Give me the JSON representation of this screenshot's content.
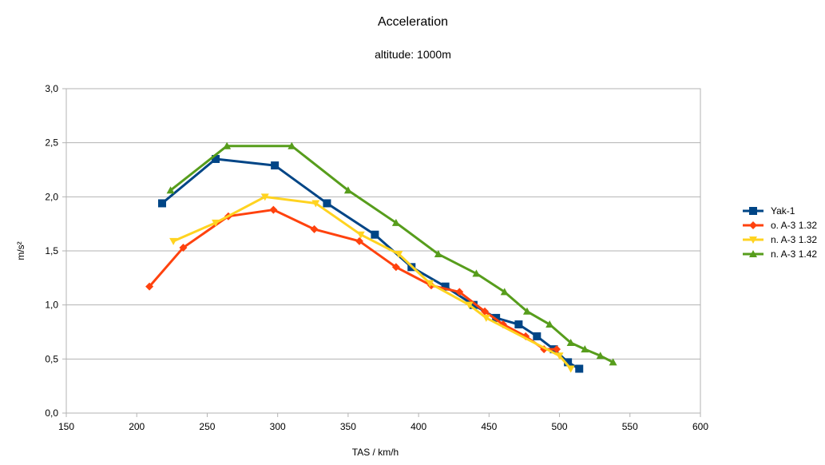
{
  "chart_data": {
    "type": "line",
    "title": "Acceleration",
    "subtitle": "altitude: 1000m",
    "xlabel": "TAS / km/h",
    "ylabel": "m/s²",
    "xlim": [
      150,
      600
    ],
    "ylim": [
      0,
      3
    ],
    "xticks": [
      150,
      200,
      250,
      300,
      350,
      400,
      450,
      500,
      550,
      600
    ],
    "yticks": [
      0,
      0.5,
      1,
      1.5,
      2,
      2.5,
      3
    ],
    "xtick_labels": [
      "150",
      "200",
      "250",
      "300",
      "350",
      "400",
      "450",
      "500",
      "550",
      "600"
    ],
    "ytick_labels": [
      "0,0",
      "0,5",
      "1,0",
      "1,5",
      "2,0",
      "2,5",
      "3,0"
    ],
    "grid": "horizontal",
    "legend_position": "right",
    "series": [
      {
        "name": "Yak-1",
        "color": "#004586",
        "marker": "square",
        "x": [
          218,
          256,
          298,
          335,
          369,
          395,
          419,
          439,
          455,
          471,
          484,
          496,
          506,
          514
        ],
        "y": [
          1.94,
          2.35,
          2.29,
          1.94,
          1.65,
          1.35,
          1.17,
          1.0,
          0.88,
          0.82,
          0.71,
          0.59,
          0.47,
          0.41
        ]
      },
      {
        "name": "o. A-3 1.32",
        "color": "#ff420e",
        "marker": "diamond",
        "x": [
          209,
          233,
          265,
          297,
          326,
          358,
          384,
          409,
          429,
          447,
          460,
          476,
          489,
          498
        ],
        "y": [
          1.17,
          1.53,
          1.82,
          1.88,
          1.7,
          1.59,
          1.35,
          1.18,
          1.12,
          0.94,
          0.82,
          0.71,
          0.59,
          0.59
        ]
      },
      {
        "name": "n. A-3 1.32",
        "color": "#ffd320",
        "marker": "triangle-down",
        "x": [
          226,
          256,
          291,
          327,
          359,
          386,
          408,
          436,
          448,
          500,
          508
        ],
        "y": [
          1.59,
          1.76,
          2.0,
          1.94,
          1.65,
          1.47,
          1.2,
          1.0,
          0.88,
          0.53,
          0.41
        ]
      },
      {
        "name": "n. A-3 1.42",
        "color": "#579d1c",
        "marker": "triangle-up",
        "x": [
          224,
          264,
          310,
          350,
          384,
          414,
          441,
          461,
          477,
          493,
          508,
          518,
          529,
          538
        ],
        "y": [
          2.06,
          2.47,
          2.47,
          2.06,
          1.76,
          1.47,
          1.29,
          1.12,
          0.94,
          0.82,
          0.65,
          0.59,
          0.53,
          0.47
        ]
      }
    ]
  }
}
